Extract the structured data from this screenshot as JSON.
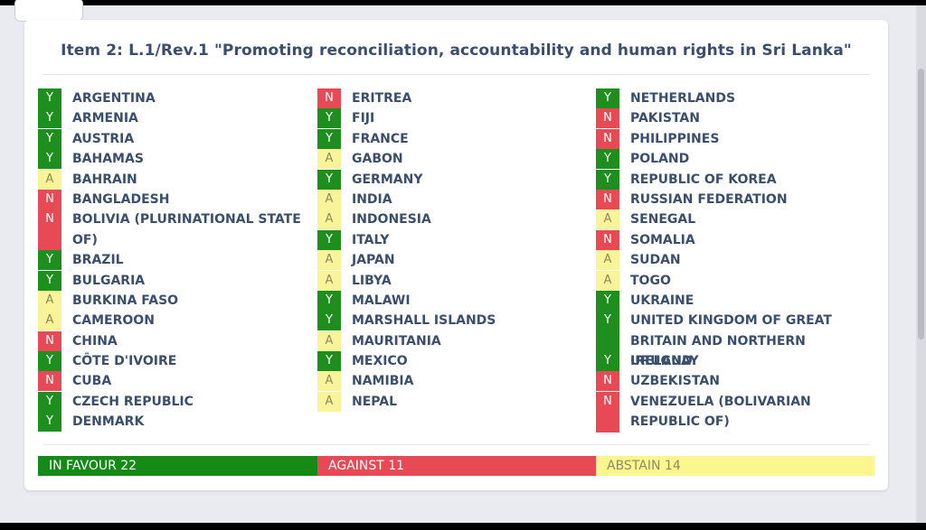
{
  "title": "Item 2: L.1/Rev.1 \"Promoting reconciliation, accountability and human rights in Sri Lanka\"",
  "colors": {
    "yes": "#1e8e1e",
    "no": "#e84a55",
    "abstain": "#f9f49a"
  },
  "columns": [
    [
      {
        "vote": "Y",
        "name": "ARGENTINA"
      },
      {
        "vote": "Y",
        "name": "ARMENIA"
      },
      {
        "vote": "Y",
        "name": "AUSTRIA"
      },
      {
        "vote": "Y",
        "name": "BAHAMAS"
      },
      {
        "vote": "A",
        "name": "BAHRAIN"
      },
      {
        "vote": "N",
        "name": "BANGLADESH"
      },
      {
        "vote": "N",
        "name": "BOLIVIA (PLURINATIONAL STATE OF)",
        "lines": 2
      },
      {
        "vote": "Y",
        "name": "BRAZIL"
      },
      {
        "vote": "Y",
        "name": "BULGARIA"
      },
      {
        "vote": "A",
        "name": "BURKINA FASO"
      },
      {
        "vote": "A",
        "name": "CAMEROON"
      },
      {
        "vote": "N",
        "name": "CHINA"
      },
      {
        "vote": "Y",
        "name": "CÔTE D'IVOIRE"
      },
      {
        "vote": "N",
        "name": "CUBA"
      },
      {
        "vote": "Y",
        "name": "CZECH REPUBLIC"
      },
      {
        "vote": "Y",
        "name": "DENMARK"
      }
    ],
    [
      {
        "vote": "N",
        "name": "ERITREA"
      },
      {
        "vote": "Y",
        "name": "FIJI"
      },
      {
        "vote": "Y",
        "name": "FRANCE"
      },
      {
        "vote": "A",
        "name": "GABON"
      },
      {
        "vote": "Y",
        "name": "GERMANY"
      },
      {
        "vote": "A",
        "name": "INDIA"
      },
      {
        "vote": "A",
        "name": "INDONESIA"
      },
      {
        "vote": "Y",
        "name": "ITALY"
      },
      {
        "vote": "A",
        "name": "JAPAN"
      },
      {
        "vote": "A",
        "name": "LIBYA"
      },
      {
        "vote": "Y",
        "name": "MALAWI"
      },
      {
        "vote": "Y",
        "name": "MARSHALL ISLANDS"
      },
      {
        "vote": "A",
        "name": "MAURITANIA"
      },
      {
        "vote": "Y",
        "name": "MEXICO"
      },
      {
        "vote": "A",
        "name": "NAMIBIA"
      },
      {
        "vote": "A",
        "name": "NEPAL"
      }
    ],
    [
      {
        "vote": "Y",
        "name": "NETHERLANDS"
      },
      {
        "vote": "N",
        "name": "PAKISTAN"
      },
      {
        "vote": "N",
        "name": "PHILIPPINES"
      },
      {
        "vote": "Y",
        "name": "POLAND"
      },
      {
        "vote": "Y",
        "name": "REPUBLIC OF KOREA"
      },
      {
        "vote": "N",
        "name": "RUSSIAN FEDERATION"
      },
      {
        "vote": "A",
        "name": "SENEGAL"
      },
      {
        "vote": "N",
        "name": "SOMALIA"
      },
      {
        "vote": "A",
        "name": "SUDAN"
      },
      {
        "vote": "A",
        "name": "TOGO"
      },
      {
        "vote": "Y",
        "name": "UKRAINE"
      },
      {
        "vote": "Y",
        "name": "UNITED KINGDOM OF GREAT BRITAIN AND NORTHERN IRELAND",
        "lines": 2
      },
      {
        "vote": "Y",
        "name": "URUGUAY"
      },
      {
        "vote": "N",
        "name": "UZBEKISTAN"
      },
      {
        "vote": "N",
        "name": "VENEZUELA (BOLIVARIAN REPUBLIC OF)",
        "lines": 2
      }
    ]
  ],
  "tally": {
    "favour": "IN FAVOUR 22",
    "against": "AGAINST 11",
    "abstain": "ABSTAIN 14"
  }
}
